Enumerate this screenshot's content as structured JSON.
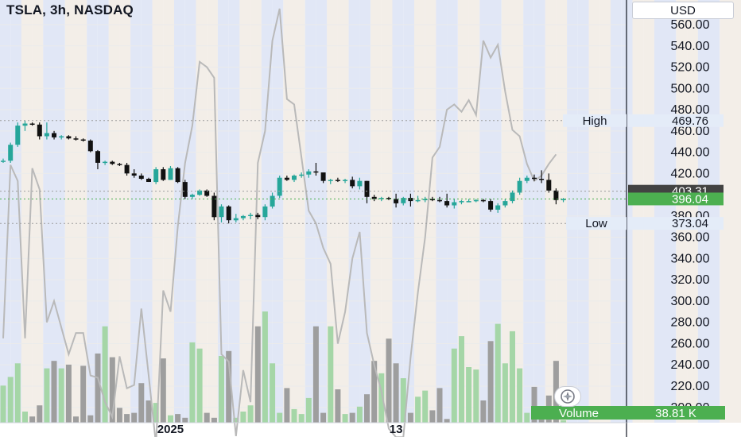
{
  "header": {
    "symbol_title": "TSLA, 3h, NASDAQ"
  },
  "toolbar": {
    "currency": "USD"
  },
  "colors": {
    "up": "#26a69a",
    "down": "#111111",
    "volume_up": "#a5d6a7",
    "volume_down": "#9e9e9e",
    "band_blue": "#c9d3ee",
    "band_beige": "#e9e0d6",
    "overlay_line": "#b9b9b9",
    "last_price_bg": "#4caf50",
    "prev_close_bg": "#424242"
  },
  "price_axis": {
    "min": 190,
    "max": 570,
    "ticks": [
      "560.00",
      "540.00",
      "520.00",
      "500.00",
      "480.00",
      "460.00",
      "440.00",
      "420.00",
      "380.00",
      "360.00",
      "340.00",
      "320.00",
      "300.00",
      "280.00",
      "260.00",
      "240.00",
      "220.00",
      "200.00"
    ]
  },
  "time_axis": {
    "labels": [
      {
        "text": "2025",
        "bar": 23
      },
      {
        "text": "13",
        "bar": 54
      }
    ]
  },
  "price_labels": {
    "high": {
      "label": "High",
      "value": "469.76"
    },
    "low": {
      "label": "Low",
      "value": "373.04"
    },
    "prev_close": {
      "value": "403.31"
    },
    "last": {
      "value": "396.04"
    },
    "volume": {
      "label": "Volume",
      "value": "38.81 K"
    }
  },
  "chart_data": {
    "type": "candlestick",
    "title": "TSLA, 3h, NASDAQ",
    "y_unit": "USD",
    "ylim": [
      190,
      570
    ],
    "candles": [
      [
        432,
        434,
        430,
        432
      ],
      [
        432,
        449,
        430,
        447
      ],
      [
        447,
        468,
        445,
        465
      ],
      [
        465,
        470,
        460,
        467
      ],
      [
        467,
        468,
        465,
        466
      ],
      [
        466,
        468,
        452,
        455
      ],
      [
        455,
        468,
        452,
        458
      ],
      [
        458,
        460,
        452,
        454
      ],
      [
        454,
        456,
        452,
        455
      ],
      [
        455,
        456,
        452,
        453
      ],
      [
        453,
        455,
        451,
        452
      ],
      [
        452,
        453,
        450,
        451
      ],
      [
        451,
        452,
        440,
        441
      ],
      [
        441,
        442,
        424,
        430
      ],
      [
        430,
        432,
        428,
        431
      ],
      [
        431,
        432,
        428,
        429
      ],
      [
        429,
        430,
        427,
        428
      ],
      [
        428,
        430,
        418,
        420
      ],
      [
        420,
        424,
        416,
        418
      ],
      [
        418,
        420,
        414,
        415
      ],
      [
        415,
        416,
        412,
        412
      ],
      [
        412,
        426,
        410,
        424
      ],
      [
        424,
        426,
        413,
        414
      ],
      [
        414,
        427,
        414,
        425
      ],
      [
        425,
        426,
        411,
        412
      ],
      [
        412,
        414,
        396,
        398
      ],
      [
        398,
        401,
        396,
        400
      ],
      [
        400,
        405,
        399,
        404
      ],
      [
        404,
        405,
        398,
        399
      ],
      [
        399,
        402,
        376,
        379
      ],
      [
        379,
        391,
        374,
        389
      ],
      [
        389,
        390,
        373,
        376
      ],
      [
        376,
        382,
        374,
        378
      ],
      [
        378,
        381,
        376,
        380
      ],
      [
        380,
        383,
        377,
        381
      ],
      [
        381,
        383,
        377,
        379
      ],
      [
        379,
        391,
        376,
        389
      ],
      [
        389,
        402,
        387,
        399
      ],
      [
        399,
        418,
        397,
        416
      ],
      [
        416,
        418,
        413,
        414
      ],
      [
        414,
        419,
        412,
        418
      ],
      [
        418,
        421,
        416,
        419
      ],
      [
        419,
        424,
        416,
        422
      ],
      [
        422,
        430,
        418,
        421
      ],
      [
        421,
        421,
        411,
        413
      ],
      [
        413,
        415,
        410,
        414
      ],
      [
        414,
        416,
        412,
        413
      ],
      [
        413,
        415,
        411,
        414
      ],
      [
        414,
        417,
        406,
        408
      ],
      [
        408,
        416,
        405,
        413
      ],
      [
        413,
        413,
        392,
        398
      ],
      [
        398,
        400,
        394,
        396
      ],
      [
        396,
        398,
        394,
        397
      ],
      [
        397,
        398,
        395,
        396
      ],
      [
        396,
        401,
        388,
        392
      ],
      [
        392,
        398,
        390,
        397
      ],
      [
        397,
        401,
        389,
        394
      ],
      [
        394,
        399,
        393,
        395
      ],
      [
        395,
        398,
        393,
        396
      ],
      [
        396,
        398,
        394,
        395
      ],
      [
        395,
        398,
        393,
        394
      ],
      [
        394,
        401,
        388,
        390
      ],
      [
        390,
        396,
        387,
        393
      ],
      [
        393,
        395,
        391,
        394
      ],
      [
        394,
        396,
        393,
        394
      ],
      [
        394,
        396,
        393,
        395
      ],
      [
        395,
        396,
        393,
        394
      ],
      [
        394,
        396,
        384,
        386
      ],
      [
        386,
        392,
        383,
        390
      ],
      [
        390,
        396,
        388,
        394
      ],
      [
        394,
        404,
        392,
        402
      ],
      [
        402,
        416,
        400,
        413
      ],
      [
        413,
        418,
        411,
        416
      ],
      [
        416,
        419,
        413,
        415
      ],
      [
        415,
        423,
        411,
        414
      ],
      [
        414,
        420,
        402,
        404
      ],
      [
        404,
        406,
        391,
        395
      ],
      [
        395,
        397,
        393,
        396
      ]
    ],
    "volume": [
      30,
      37,
      48,
      9,
      5,
      14,
      44,
      50,
      44,
      47,
      5,
      46,
      6,
      56,
      78,
      53,
      12,
      7,
      8,
      32,
      18,
      16,
      52,
      6,
      7,
      4,
      65,
      60,
      8,
      4,
      54,
      58,
      4,
      9,
      14,
      78,
      90,
      48,
      8,
      28,
      11,
      7,
      20,
      78,
      8,
      78,
      27,
      7,
      8,
      13,
      23,
      50,
      40,
      68,
      48,
      36,
      8,
      21,
      26,
      10,
      28,
      3,
      60,
      70,
      45,
      43,
      18,
      66,
      80,
      48,
      74,
      44,
      8,
      29,
      4,
      22,
      50,
      2
    ],
    "overlay_line": [
      265,
      428,
      413,
      265,
      425,
      405,
      280,
      300,
      275,
      250,
      270,
      270,
      230,
      228,
      205,
      191,
      248,
      218,
      221,
      293,
      230,
      165,
      310,
      290,
      370,
      430,
      465,
      525,
      520,
      510,
      250,
      243,
      173,
      235,
      205,
      430,
      460,
      545,
      575,
      490,
      485,
      435,
      385,
      373,
      350,
      335,
      260,
      290,
      340,
      365,
      270,
      240,
      215,
      180,
      172,
      172,
      247,
      308,
      360,
      435,
      445,
      480,
      485,
      478,
      489,
      475,
      545,
      529,
      541,
      497,
      461,
      455,
      429,
      413,
      418,
      429,
      438
    ]
  }
}
